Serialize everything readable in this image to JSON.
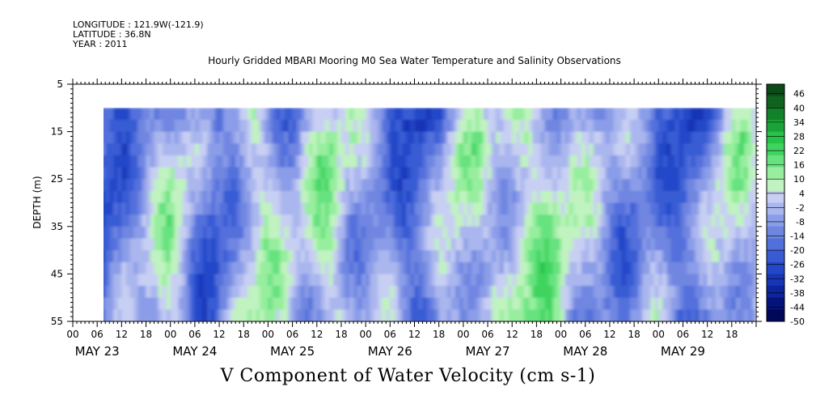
{
  "header": {
    "longitude": "LONGITUDE : 121.9W(-121.9)",
    "latitude": "LATITUDE : 36.8N",
    "year": "YEAR : 2011"
  },
  "chart_data": {
    "type": "heatmap",
    "title": "Hourly Gridded MBARI Mooring M0 Sea Water Temperature and Salinity Observations",
    "subtitle": "V Component of Water Velocity (cm s-1)",
    "ylabel": "DEPTH (m)",
    "y_ticks": [
      5,
      15,
      25,
      35,
      45,
      55
    ],
    "y_range": [
      5,
      55
    ],
    "y_inverted": true,
    "x_range_days": [
      "2011-05-23 00:00",
      "2011-05-29 23:59"
    ],
    "x_hour_ticks": [
      "00",
      "06",
      "12",
      "18",
      "00",
      "06",
      "12",
      "18",
      "00",
      "06",
      "12",
      "18",
      "00",
      "06",
      "12",
      "18",
      "00",
      "06",
      "12",
      "18",
      "00",
      "06",
      "12",
      "18",
      "00",
      "06",
      "12",
      "18"
    ],
    "x_day_labels": [
      "MAY 23",
      "MAY 24",
      "MAY 25",
      "MAY 26",
      "MAY 27",
      "MAY 28",
      "MAY 29"
    ],
    "data_start_hour": "06 MAY 23",
    "data_depth_range": [
      10,
      55
    ],
    "colorbar": {
      "levels": [
        46,
        40,
        34,
        28,
        22,
        16,
        10,
        4,
        -2,
        -8,
        -14,
        -20,
        -26,
        -32,
        -38,
        -44,
        -50
      ],
      "min": -50,
      "max": 50,
      "colors_high_to_low": [
        "#0c4a1a",
        "#10621f",
        "#13802a",
        "#1aa338",
        "#27c24a",
        "#3fd45f",
        "#66e27f",
        "#96ee9e",
        "#c0f3c0",
        "#c7cff3",
        "#aab6ee",
        "#8b9de8",
        "#6f86e1",
        "#5270dc",
        "#385bd4",
        "#2447c8",
        "#1735b5",
        "#0c249c",
        "#05147a",
        "#000857"
      ]
    },
    "pattern_columns": [
      {
        "hour": 6,
        "dominant": "negative"
      },
      {
        "hour": 26,
        "dominant": "positive"
      },
      {
        "hour": 33,
        "dominant": "negative"
      },
      {
        "hour": 44,
        "dominant": "positive"
      },
      {
        "hour": 63,
        "dominant": "positive"
      },
      {
        "hour": 85,
        "dominant": "negative"
      },
      {
        "hour": 94,
        "dominant": "positive"
      },
      {
        "hour": 109,
        "dominant": "positive"
      },
      {
        "hour": 118,
        "dominant": "positive"
      },
      {
        "hour": 138,
        "dominant": "neutral"
      },
      {
        "hour": 152,
        "dominant": "negative"
      },
      {
        "hour": 160,
        "dominant": "positive"
      }
    ]
  }
}
